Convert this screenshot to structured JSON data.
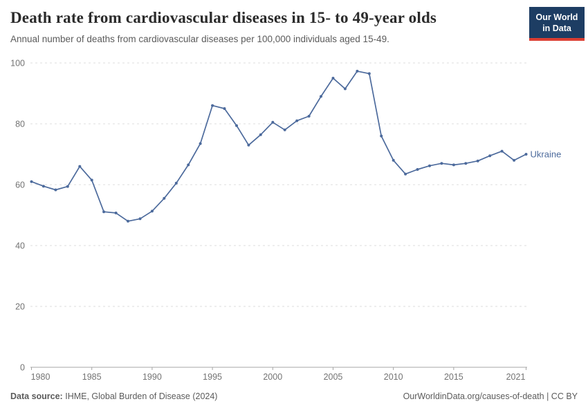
{
  "logo": {
    "line1": "Our World",
    "line2": "in Data",
    "bg_color": "#1d3d63",
    "bar_color": "#dc3e32"
  },
  "footer": {
    "source_label": "Data source:",
    "source_value": "IHME, Global Burden of Disease (2024)",
    "credit": "OurWorldinData.org/causes-of-death | CC BY"
  },
  "chart_data": {
    "type": "line",
    "title": "Death rate from cardiovascular diseases in 15- to 49-year olds",
    "subtitle": "Annual number of deaths from cardiovascular diseases per 100,000 individuals aged 15-49.",
    "xlabel": "",
    "ylabel": "",
    "x": [
      1980,
      1981,
      1982,
      1983,
      1984,
      1985,
      1986,
      1987,
      1988,
      1989,
      1990,
      1991,
      1992,
      1993,
      1994,
      1995,
      1996,
      1997,
      1998,
      1999,
      2000,
      2001,
      2002,
      2003,
      2004,
      2005,
      2006,
      2007,
      2008,
      2009,
      2010,
      2011,
      2012,
      2013,
      2014,
      2015,
      2016,
      2017,
      2018,
      2019,
      2020,
      2021
    ],
    "series": [
      {
        "name": "Ukraine",
        "color": "#4C6A9C",
        "values": [
          61,
          59.5,
          58.3,
          59.4,
          66,
          61.5,
          51.1,
          50.7,
          48,
          48.8,
          51.3,
          55.5,
          60.5,
          66.5,
          73.5,
          86,
          85,
          79.4,
          73,
          76.4,
          80.5,
          78,
          81,
          82.5,
          89,
          95,
          91.5,
          97.3,
          96.5,
          76,
          68,
          63.5,
          65,
          66.2,
          67,
          66.5,
          67,
          67.8,
          69.5,
          71,
          68,
          70
        ]
      }
    ],
    "ylim": [
      0,
      100
    ],
    "yticks": [
      0,
      20,
      40,
      60,
      80,
      100
    ],
    "xticks": [
      1980,
      1985,
      1990,
      1995,
      2000,
      2005,
      2010,
      2015,
      2021
    ],
    "grid": "horizontal-dashed",
    "legend": "end-of-line-label",
    "colors": {
      "grid": "#dcdcdc",
      "axis": "#a5a5a5",
      "tick_text": "#737373"
    }
  }
}
